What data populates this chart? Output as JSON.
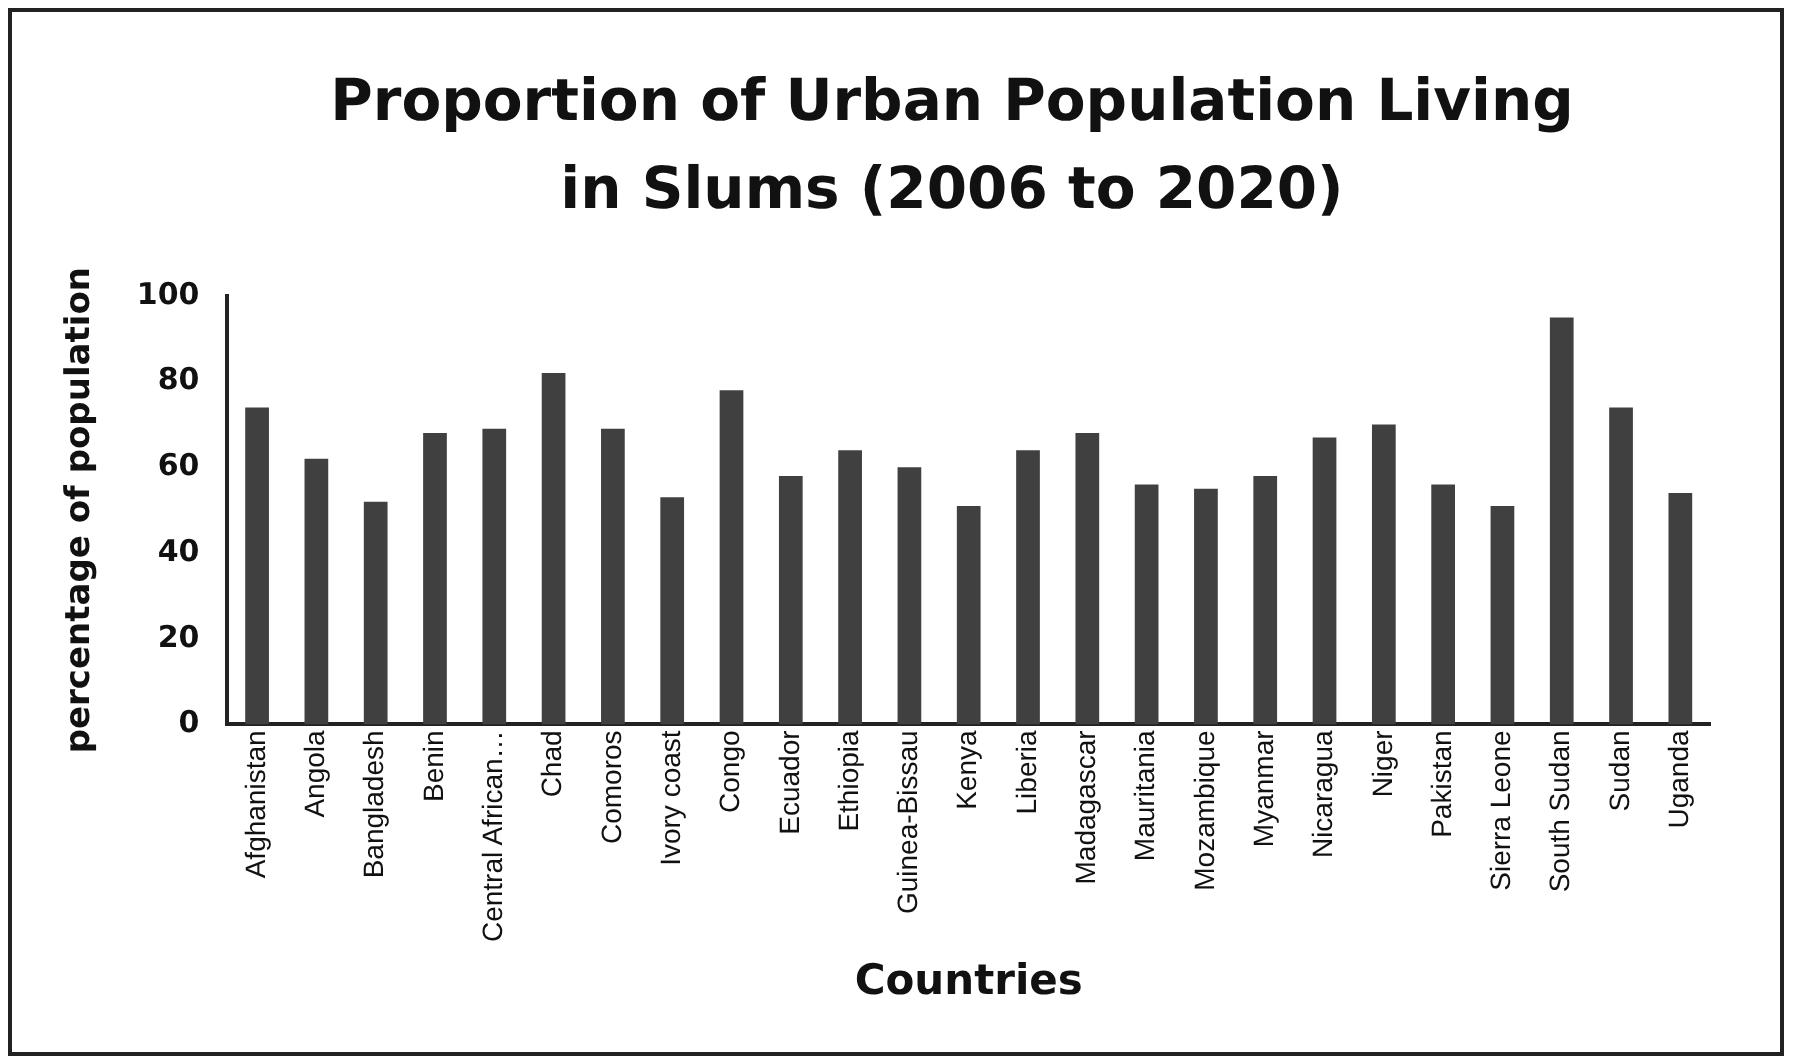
{
  "chart_data": {
    "type": "bar",
    "title": "Proportion of Urban Population Living in Slums (2006 to 2020)",
    "xlabel": "Countries",
    "ylabel": "percentage of population",
    "categories": [
      "Afghanistan",
      "Angola",
      "Bangladesh",
      "Benin",
      "Central African…",
      "Chad",
      "Comoros",
      "Ivory coast",
      "Congo",
      "Ecuador",
      "Ethiopia",
      "Guinea-Bissau",
      "Kenya",
      "Liberia",
      "Madagascar",
      "Mauritania",
      "Mozambique",
      "Myanmar",
      "Nicaragua",
      "Niger",
      "Pakistan",
      "Sierra Leone",
      "South Sudan",
      "Sudan",
      "Uganda"
    ],
    "values": [
      74,
      62,
      52,
      68,
      69,
      82,
      69,
      53,
      78,
      58,
      64,
      60,
      51,
      64,
      68,
      56,
      55,
      58,
      67,
      70,
      56,
      51,
      95,
      74,
      54
    ],
    "color": "#404040",
    "ylim": [
      0,
      100
    ],
    "yticks": [
      0,
      20,
      40,
      60,
      80,
      100
    ],
    "grid": false,
    "legend": false
  }
}
